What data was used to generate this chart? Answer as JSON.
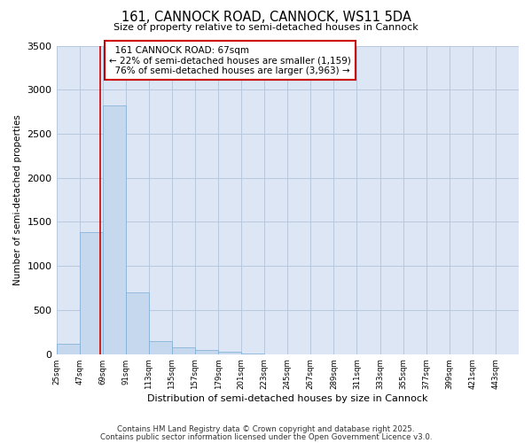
{
  "title1": "161, CANNOCK ROAD, CANNOCK, WS11 5DA",
  "title2": "Size of property relative to semi-detached houses in Cannock",
  "xlabel": "Distribution of semi-detached houses by size in Cannock",
  "ylabel": "Number of semi-detached properties",
  "bins": [
    25,
    47,
    69,
    91,
    113,
    135,
    157,
    179,
    201,
    223,
    245,
    267,
    289,
    311,
    333,
    355,
    377,
    399,
    421,
    443,
    465
  ],
  "counts": [
    120,
    1380,
    2820,
    700,
    150,
    80,
    45,
    30,
    10,
    0,
    0,
    0,
    0,
    0,
    0,
    0,
    0,
    0,
    0,
    0
  ],
  "bar_color": "#c5d8ee",
  "bar_edgecolor": "#7aadd4",
  "property_size": 67,
  "property_label": "161 CANNOCK ROAD: 67sqm",
  "pct_smaller": 22,
  "count_smaller": 1159,
  "pct_larger": 76,
  "count_larger": 3963,
  "red_line_color": "#cc0000",
  "annotation_box_facecolor": "#ffffff",
  "annotation_box_edgecolor": "#cc0000",
  "ylim": [
    0,
    3500
  ],
  "yticks": [
    0,
    500,
    1000,
    1500,
    2000,
    2500,
    3000,
    3500
  ],
  "bg_color": "#dce6f5",
  "grid_color": "#b8c8dc",
  "footer1": "Contains HM Land Registry data © Crown copyright and database right 2025.",
  "footer2": "Contains public sector information licensed under the Open Government Licence v3.0."
}
